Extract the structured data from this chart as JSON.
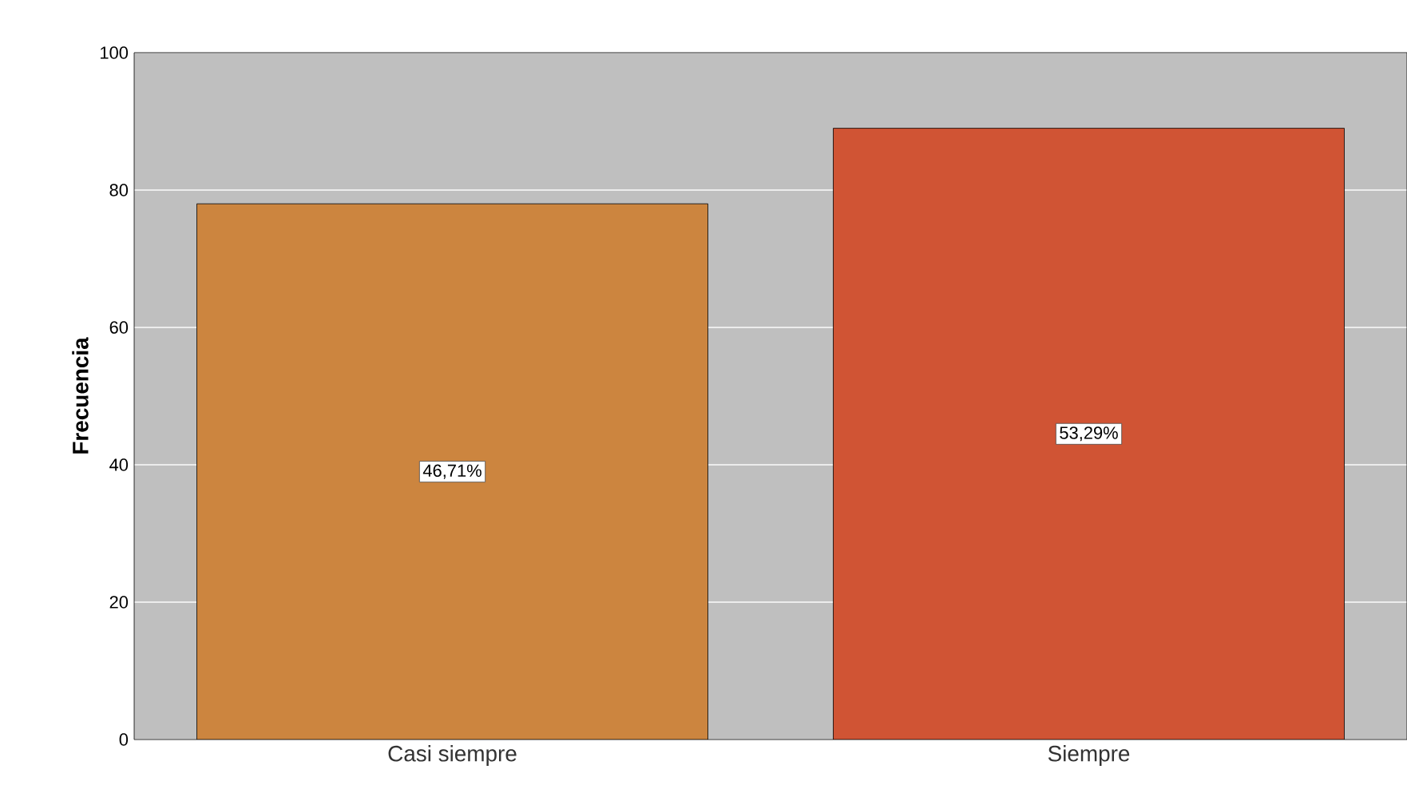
{
  "chart_data": {
    "type": "bar",
    "ylabel": "Frecuencia",
    "categories": [
      "Casi siempre",
      "Siempre"
    ],
    "values": [
      78,
      89
    ],
    "colors": [
      "#cc853f",
      "#d05434"
    ],
    "annotations": [
      {
        "text": "46,71%",
        "x": "Casi siempre",
        "y": 39
      },
      {
        "text": "53,29%",
        "x": "Siempre",
        "y": 44.5
      }
    ],
    "ylim": [
      0,
      100
    ],
    "yticks": [
      0,
      20,
      40,
      60,
      80,
      100
    ],
    "grid": "y"
  }
}
